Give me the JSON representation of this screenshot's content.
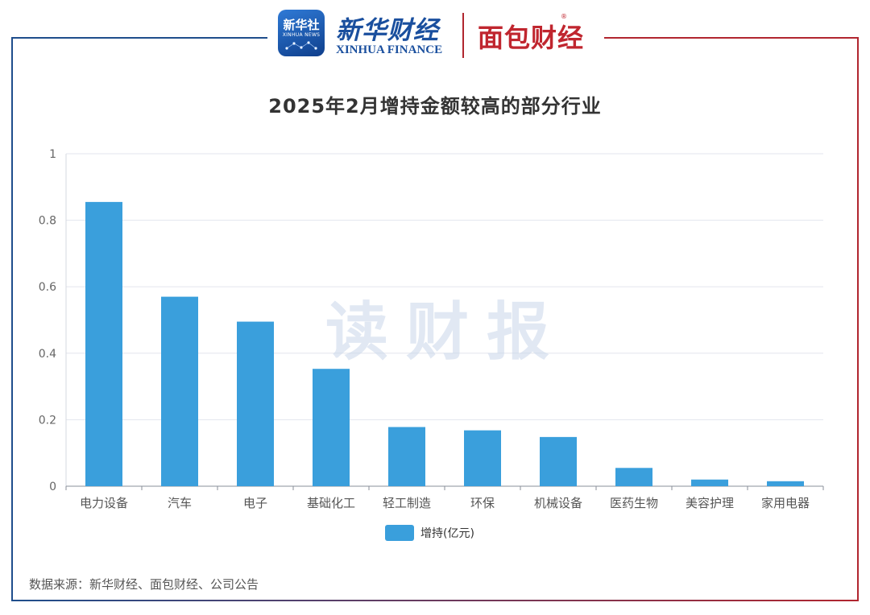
{
  "header": {
    "xinhua_badge_cn": "新华社",
    "xinhua_badge_en": "XINHUA NEWS",
    "xinhua_finance_cn": "新华财经",
    "xinhua_finance_en": "XINHUA FINANCE",
    "mianbao_cn": "面包财经",
    "mianbao_reg": "®"
  },
  "watermark": "读财报",
  "source": "数据来源：新华财经、面包财经、公司公告",
  "colors": {
    "bar": "#3a9fdc",
    "frame_left": "#1f4e8c",
    "frame_right": "#b1262f"
  },
  "chart_data": {
    "type": "bar",
    "title": "2025年2月增持金额较高的部分行业",
    "categories": [
      "电力设备",
      "汽车",
      "电子",
      "基础化工",
      "轻工制造",
      "环保",
      "机械设备",
      "医药生物",
      "美容护理",
      "家用电器"
    ],
    "series": [
      {
        "name": "增持(亿元)",
        "values": [
          0.855,
          0.57,
          0.495,
          0.353,
          0.178,
          0.168,
          0.148,
          0.055,
          0.02,
          0.015
        ]
      }
    ],
    "ylim": [
      0,
      1
    ],
    "yticks": [
      "0",
      "0.2",
      "0.4",
      "0.6",
      "0.8",
      "1"
    ],
    "grid": true,
    "legend": "bottom-center"
  }
}
